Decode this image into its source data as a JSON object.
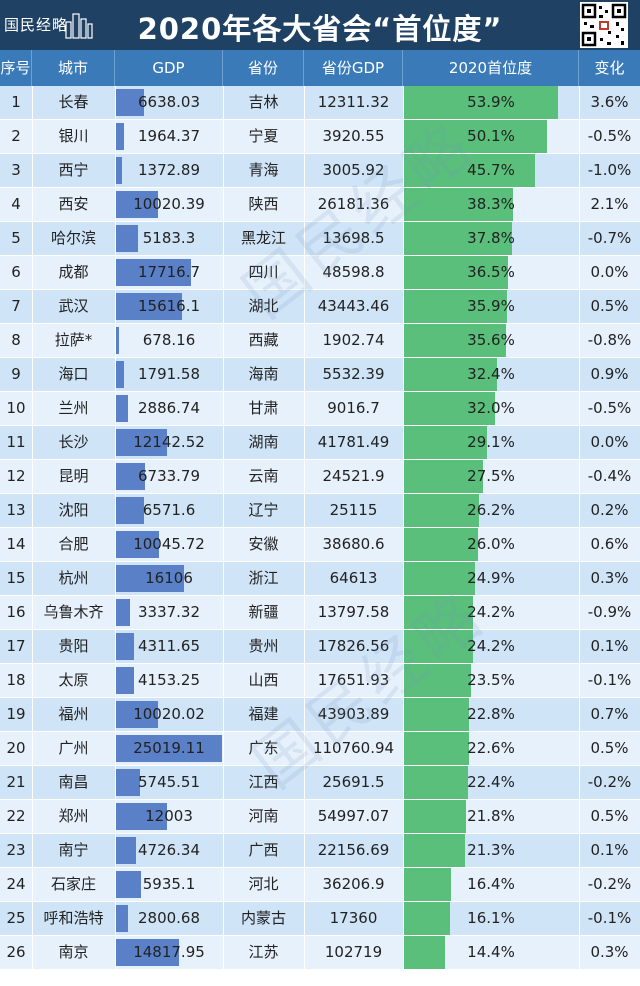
{
  "header": {
    "brand": "国民经略",
    "title": "2020年各大省会“首位度”"
  },
  "columns": [
    "序号",
    "城市",
    "GDP",
    "省份",
    "省份GDP",
    "2020首位度",
    "变化"
  ],
  "colors": {
    "header_bg": "#1f4264",
    "column_header_bg": "#3a7ab8",
    "row_odd": "#cfe4f6",
    "row_even": "#e7f1fb",
    "gdp_bar": "#5a80c8",
    "primacy_bar": "#59bf7a"
  },
  "chart_data": {
    "type": "table",
    "gdp_bar_scale_max": 25019.11,
    "primacy_bar_scale_max": 53.9,
    "rows": [
      {
        "rank": "1",
        "city": "长春",
        "gdp": "6638.03",
        "gdp_value": 6638.03,
        "province": "吉林",
        "province_gdp": "12311.32",
        "primacy": "53.9%",
        "primacy_value": 53.9,
        "change": "3.6%"
      },
      {
        "rank": "2",
        "city": "银川",
        "gdp": "1964.37",
        "gdp_value": 1964.37,
        "province": "宁夏",
        "province_gdp": "3920.55",
        "primacy": "50.1%",
        "primacy_value": 50.1,
        "change": "-0.5%"
      },
      {
        "rank": "3",
        "city": "西宁",
        "gdp": "1372.89",
        "gdp_value": 1372.89,
        "province": "青海",
        "province_gdp": "3005.92",
        "primacy": "45.7%",
        "primacy_value": 45.7,
        "change": "-1.0%"
      },
      {
        "rank": "4",
        "city": "西安",
        "gdp": "10020.39",
        "gdp_value": 10020.39,
        "province": "陕西",
        "province_gdp": "26181.36",
        "primacy": "38.3%",
        "primacy_value": 38.3,
        "change": "2.1%"
      },
      {
        "rank": "5",
        "city": "哈尔滨",
        "gdp": "5183.3",
        "gdp_value": 5183.3,
        "province": "黑龙江",
        "province_gdp": "13698.5",
        "primacy": "37.8%",
        "primacy_value": 37.8,
        "change": "-0.7%"
      },
      {
        "rank": "6",
        "city": "成都",
        "gdp": "17716.7",
        "gdp_value": 17716.7,
        "province": "四川",
        "province_gdp": "48598.8",
        "primacy": "36.5%",
        "primacy_value": 36.5,
        "change": "0.0%"
      },
      {
        "rank": "7",
        "city": "武汉",
        "gdp": "15616.1",
        "gdp_value": 15616.1,
        "province": "湖北",
        "province_gdp": "43443.46",
        "primacy": "35.9%",
        "primacy_value": 35.9,
        "change": "0.5%"
      },
      {
        "rank": "8",
        "city": "拉萨*",
        "gdp": "678.16",
        "gdp_value": 678.16,
        "province": "西藏",
        "province_gdp": "1902.74",
        "primacy": "35.6%",
        "primacy_value": 35.6,
        "change": "-0.8%"
      },
      {
        "rank": "9",
        "city": "海口",
        "gdp": "1791.58",
        "gdp_value": 1791.58,
        "province": "海南",
        "province_gdp": "5532.39",
        "primacy": "32.4%",
        "primacy_value": 32.4,
        "change": "0.9%"
      },
      {
        "rank": "10",
        "city": "兰州",
        "gdp": "2886.74",
        "gdp_value": 2886.74,
        "province": "甘肃",
        "province_gdp": "9016.7",
        "primacy": "32.0%",
        "primacy_value": 32.0,
        "change": "-0.5%"
      },
      {
        "rank": "11",
        "city": "长沙",
        "gdp": "12142.52",
        "gdp_value": 12142.52,
        "province": "湖南",
        "province_gdp": "41781.49",
        "primacy": "29.1%",
        "primacy_value": 29.1,
        "change": "0.0%"
      },
      {
        "rank": "12",
        "city": "昆明",
        "gdp": "6733.79",
        "gdp_value": 6733.79,
        "province": "云南",
        "province_gdp": "24521.9",
        "primacy": "27.5%",
        "primacy_value": 27.5,
        "change": "-0.4%"
      },
      {
        "rank": "13",
        "city": "沈阳",
        "gdp": "6571.6",
        "gdp_value": 6571.6,
        "province": "辽宁",
        "province_gdp": "25115",
        "primacy": "26.2%",
        "primacy_value": 26.2,
        "change": "0.2%"
      },
      {
        "rank": "14",
        "city": "合肥",
        "gdp": "10045.72",
        "gdp_value": 10045.72,
        "province": "安徽",
        "province_gdp": "38680.6",
        "primacy": "26.0%",
        "primacy_value": 26.0,
        "change": "0.6%"
      },
      {
        "rank": "15",
        "city": "杭州",
        "gdp": "16106",
        "gdp_value": 16106,
        "province": "浙江",
        "province_gdp": "64613",
        "primacy": "24.9%",
        "primacy_value": 24.9,
        "change": "0.3%"
      },
      {
        "rank": "16",
        "city": "乌鲁木齐",
        "gdp": "3337.32",
        "gdp_value": 3337.32,
        "province": "新疆",
        "province_gdp": "13797.58",
        "primacy": "24.2%",
        "primacy_value": 24.2,
        "change": "-0.9%"
      },
      {
        "rank": "17",
        "city": "贵阳",
        "gdp": "4311.65",
        "gdp_value": 4311.65,
        "province": "贵州",
        "province_gdp": "17826.56",
        "primacy": "24.2%",
        "primacy_value": 24.2,
        "change": "0.1%"
      },
      {
        "rank": "18",
        "city": "太原",
        "gdp": "4153.25",
        "gdp_value": 4153.25,
        "province": "山西",
        "province_gdp": "17651.93",
        "primacy": "23.5%",
        "primacy_value": 23.5,
        "change": "-0.1%"
      },
      {
        "rank": "19",
        "city": "福州",
        "gdp": "10020.02",
        "gdp_value": 10020.02,
        "province": "福建",
        "province_gdp": "43903.89",
        "primacy": "22.8%",
        "primacy_value": 22.8,
        "change": "0.7%"
      },
      {
        "rank": "20",
        "city": "广州",
        "gdp": "25019.11",
        "gdp_value": 25019.11,
        "province": "广东",
        "province_gdp": "110760.94",
        "primacy": "22.6%",
        "primacy_value": 22.6,
        "change": "0.5%"
      },
      {
        "rank": "21",
        "city": "南昌",
        "gdp": "5745.51",
        "gdp_value": 5745.51,
        "province": "江西",
        "province_gdp": "25691.5",
        "primacy": "22.4%",
        "primacy_value": 22.4,
        "change": "-0.2%"
      },
      {
        "rank": "22",
        "city": "郑州",
        "gdp": "12003",
        "gdp_value": 12003,
        "province": "河南",
        "province_gdp": "54997.07",
        "primacy": "21.8%",
        "primacy_value": 21.8,
        "change": "0.5%"
      },
      {
        "rank": "23",
        "city": "南宁",
        "gdp": "4726.34",
        "gdp_value": 4726.34,
        "province": "广西",
        "province_gdp": "22156.69",
        "primacy": "21.3%",
        "primacy_value": 21.3,
        "change": "0.1%"
      },
      {
        "rank": "24",
        "city": "石家庄",
        "gdp": "5935.1",
        "gdp_value": 5935.1,
        "province": "河北",
        "province_gdp": "36206.9",
        "primacy": "16.4%",
        "primacy_value": 16.4,
        "change": "-0.2%"
      },
      {
        "rank": "25",
        "city": "呼和浩特",
        "gdp": "2800.68",
        "gdp_value": 2800.68,
        "province": "内蒙古",
        "province_gdp": "17360",
        "primacy": "16.1%",
        "primacy_value": 16.1,
        "change": "-0.1%"
      },
      {
        "rank": "26",
        "city": "南京",
        "gdp": "14817.95",
        "gdp_value": 14817.95,
        "province": "江苏",
        "province_gdp": "102719",
        "primacy": "14.4%",
        "primacy_value": 14.4,
        "change": "0.3%"
      }
    ]
  }
}
